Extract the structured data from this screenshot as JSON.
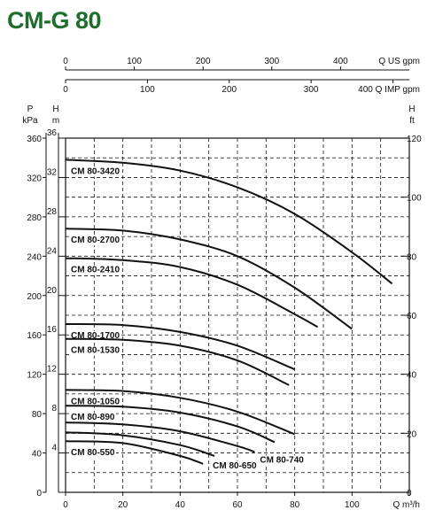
{
  "header": {
    "title": "CM-G 80"
  },
  "chart_data": {
    "type": "line",
    "title": "CM-G 80",
    "x_primary": {
      "unit_label": "Q m³/h",
      "range": [
        0,
        120
      ],
      "ticks": [
        0,
        20,
        40,
        60,
        80,
        100,
        120
      ]
    },
    "x_us": {
      "unit_label": "Q US gpm",
      "range": [
        0,
        500
      ],
      "ticks": [
        0,
        100,
        200,
        300,
        400
      ]
    },
    "x_imp": {
      "unit_label": "Q IMP gpm",
      "range": [
        0,
        420
      ],
      "ticks": [
        0,
        100,
        200,
        300
      ],
      "end_label": "400"
    },
    "y_head_m": {
      "label": "H",
      "unit": "m",
      "range": [
        0,
        36
      ],
      "ticks": [
        4,
        8,
        12,
        16,
        20,
        24,
        28,
        32,
        36
      ]
    },
    "y_pressure_kpa": {
      "label": "P",
      "unit": "kPa",
      "range": [
        0,
        360
      ],
      "ticks": [
        0,
        40,
        80,
        120,
        160,
        200,
        240,
        280,
        320,
        360
      ]
    },
    "y_head_ft": {
      "label": "H",
      "unit": "ft",
      "range": [
        0,
        120
      ],
      "ticks": [
        0,
        20,
        40,
        60,
        80,
        100,
        120
      ]
    },
    "grid": true,
    "series": [
      {
        "name": "CM 80-3420",
        "x": [
          0,
          20,
          40,
          60,
          80,
          100,
          114
        ],
        "y": [
          33.8,
          33.5,
          32.7,
          31.0,
          28.3,
          24.4,
          21.2
        ]
      },
      {
        "name": "CM 80-2700",
        "x": [
          0,
          20,
          40,
          60,
          80,
          100
        ],
        "y": [
          26.8,
          26.6,
          25.7,
          24.0,
          20.8,
          16.6
        ]
      },
      {
        "name": "CM 80-2410",
        "x": [
          0,
          20,
          40,
          60,
          80,
          88
        ],
        "y": [
          23.8,
          23.6,
          22.9,
          21.1,
          18.1,
          16.8
        ]
      },
      {
        "name": "CM 80-1700",
        "x": [
          0,
          20,
          40,
          60,
          80
        ],
        "y": [
          17.1,
          17.0,
          16.3,
          14.9,
          12.5
        ]
      },
      {
        "name": "CM 80-1530",
        "x": [
          0,
          20,
          40,
          60,
          78
        ],
        "y": [
          15.6,
          15.5,
          14.9,
          13.4,
          10.9
        ]
      },
      {
        "name": "CM 80-1050",
        "x": [
          0,
          20,
          40,
          60,
          80
        ],
        "y": [
          10.4,
          10.3,
          9.6,
          8.2,
          5.9
        ]
      },
      {
        "name": "CM 80-890",
        "x": [
          0,
          20,
          40,
          60,
          73
        ],
        "y": [
          8.8,
          8.7,
          8.1,
          6.7,
          5.1
        ]
      },
      {
        "name": "CM 80-740",
        "x": [
          0,
          20,
          40,
          60,
          66
        ],
        "y": [
          7.1,
          6.9,
          6.2,
          4.7,
          4.1
        ]
      },
      {
        "name": "CM 80-650",
        "x": [
          0,
          20,
          40,
          52
        ],
        "y": [
          6.1,
          5.8,
          4.8,
          3.7
        ]
      },
      {
        "name": "CM 80-550",
        "x": [
          0,
          20,
          40,
          48
        ],
        "y": [
          5.2,
          5.0,
          3.7,
          2.9
        ]
      }
    ]
  }
}
